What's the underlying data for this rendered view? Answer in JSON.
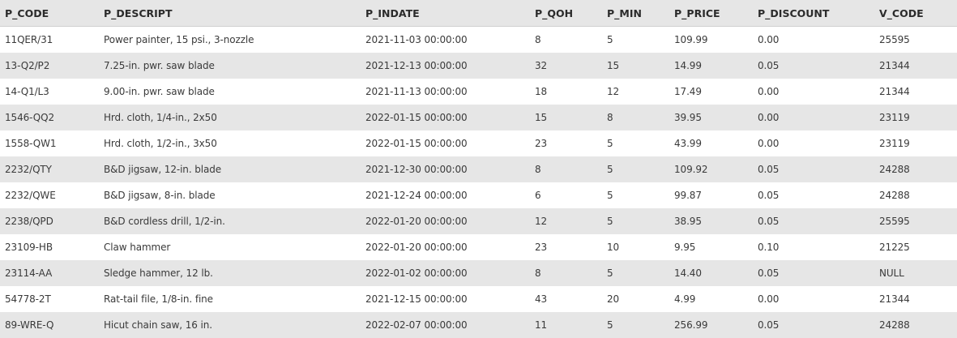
{
  "table": {
    "columns": [
      "P_CODE",
      "P_DESCRIPT",
      "P_INDATE",
      "P_QOH",
      "P_MIN",
      "P_PRICE",
      "P_DISCOUNT",
      "V_CODE"
    ],
    "rows": [
      [
        "11QER/31",
        "Power painter, 15 psi., 3-nozzle",
        "2021-11-03 00:00:00",
        "8",
        "5",
        "109.99",
        "0.00",
        "25595"
      ],
      [
        "13-Q2/P2",
        "7.25-in. pwr. saw blade",
        "2021-12-13 00:00:00",
        "32",
        "15",
        "14.99",
        "0.05",
        "21344"
      ],
      [
        "14-Q1/L3",
        "9.00-in. pwr. saw blade",
        "2021-11-13 00:00:00",
        "18",
        "12",
        "17.49",
        "0.00",
        "21344"
      ],
      [
        "1546-QQ2",
        "Hrd. cloth, 1/4-in., 2x50",
        "2022-01-15 00:00:00",
        "15",
        "8",
        "39.95",
        "0.00",
        "23119"
      ],
      [
        "1558-QW1",
        "Hrd. cloth, 1/2-in., 3x50",
        "2022-01-15 00:00:00",
        "23",
        "5",
        "43.99",
        "0.00",
        "23119"
      ],
      [
        "2232/QTY",
        "B&D jigsaw, 12-in. blade",
        "2021-12-30 00:00:00",
        "8",
        "5",
        "109.92",
        "0.05",
        "24288"
      ],
      [
        "2232/QWE",
        "B&D jigsaw, 8-in. blade",
        "2021-12-24 00:00:00",
        "6",
        "5",
        "99.87",
        "0.05",
        "24288"
      ],
      [
        "2238/QPD",
        "B&D cordless drill, 1/2-in.",
        "2022-01-20 00:00:00",
        "12",
        "5",
        "38.95",
        "0.05",
        "25595"
      ],
      [
        "23109-HB",
        "Claw hammer",
        "2022-01-20 00:00:00",
        "23",
        "10",
        "9.95",
        "0.10",
        "21225"
      ],
      [
        "23114-AA",
        "Sledge hammer, 12 lb.",
        "2022-01-02 00:00:00",
        "8",
        "5",
        "14.40",
        "0.05",
        "NULL"
      ],
      [
        "54778-2T",
        "Rat-tail file, 1/8-in. fine",
        "2021-12-15 00:00:00",
        "43",
        "20",
        "4.99",
        "0.00",
        "21344"
      ],
      [
        "89-WRE-Q",
        "Hicut chain saw, 16 in.",
        "2022-02-07 00:00:00",
        "11",
        "5",
        "256.99",
        "0.05",
        "24288"
      ]
    ]
  }
}
